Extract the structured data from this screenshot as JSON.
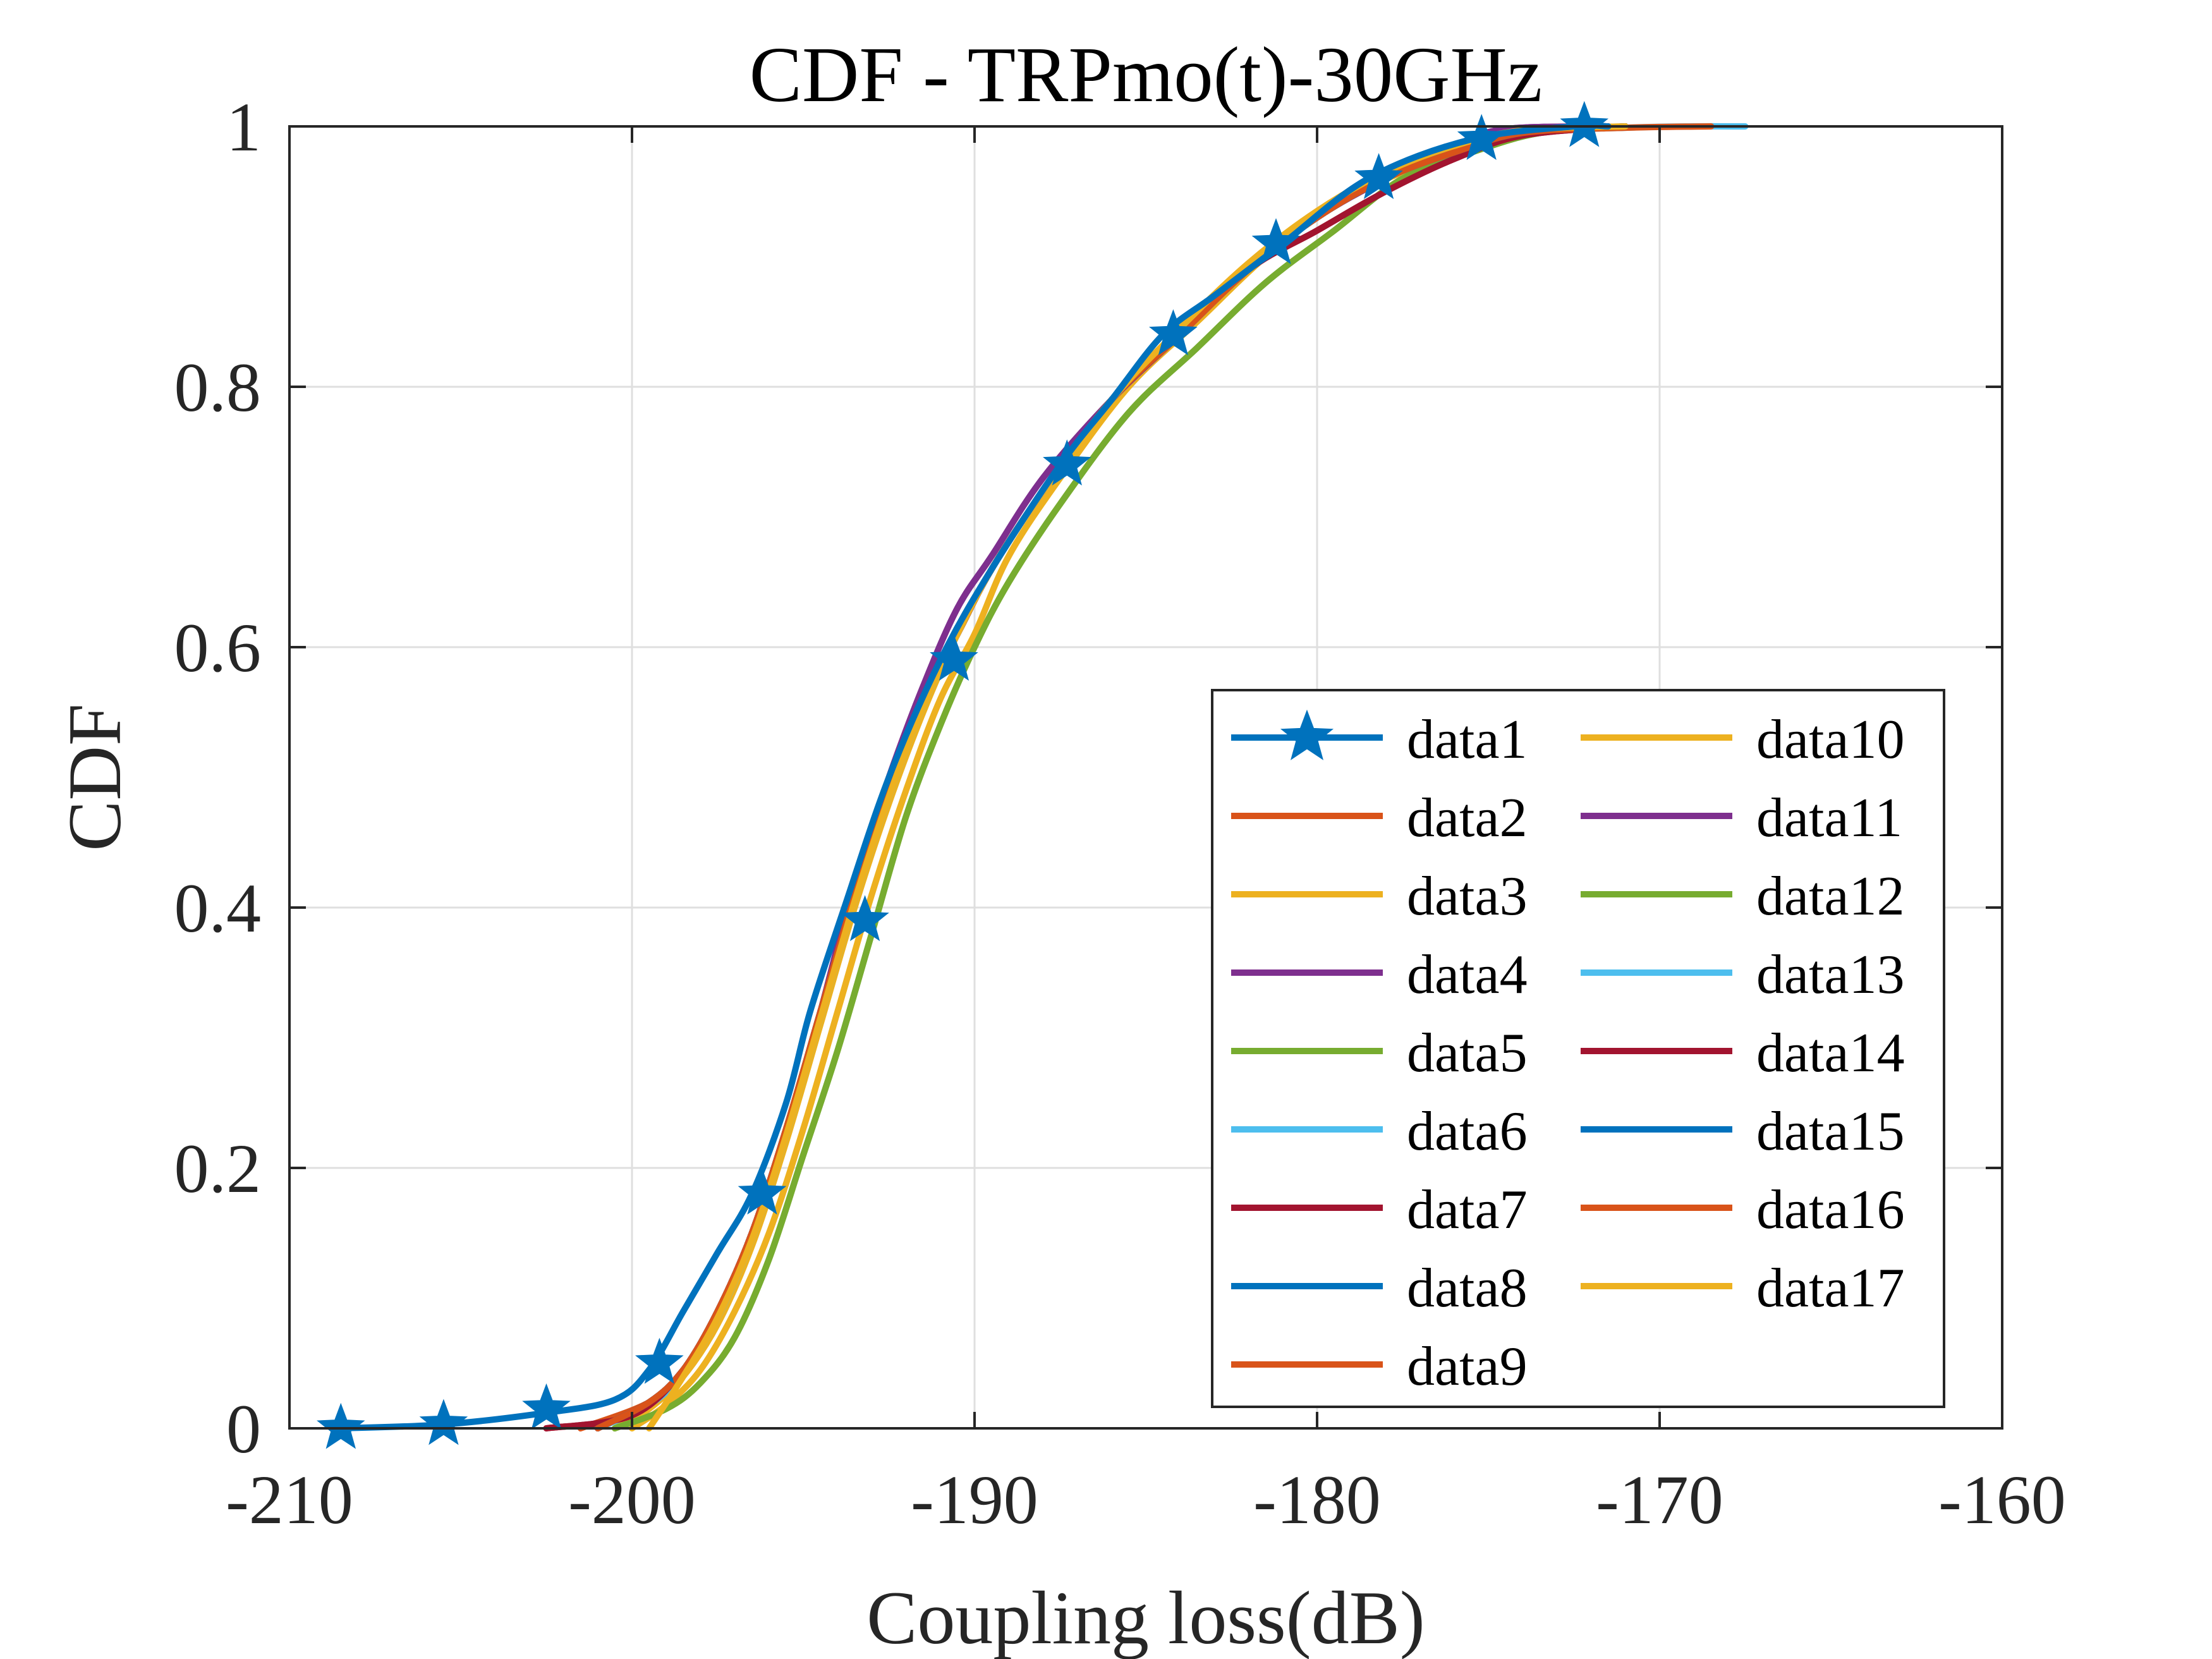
{
  "chart_data": {
    "type": "line",
    "title": "CDF - TRPmo(t)-30GHz",
    "xlabel": "Coupling loss(dB)",
    "ylabel": "CDF",
    "xlim": [
      -210,
      -160
    ],
    "ylim": [
      0,
      1
    ],
    "xticks": [
      "-210",
      "-200",
      "-190",
      "-180",
      "-170",
      "-160"
    ],
    "yticks": [
      "0",
      "0.2",
      "0.4",
      "0.6",
      "0.8",
      "1"
    ],
    "grid": true,
    "legend_position": "bottom-right",
    "legend_columns": 2,
    "series": [
      {
        "name": "data1",
        "color": "#0072BD",
        "marker": "star",
        "x": [
          -208.5,
          -205.5,
          -202.5,
          -200.5,
          -199.5,
          -198.5,
          -197.5,
          -196.5,
          -195.5,
          -194.8,
          -193.8,
          -192.5,
          -191,
          -189.5,
          -187.5,
          -186,
          -184.5,
          -183,
          -181,
          -178.5,
          -175.5,
          -172.5,
          -171.5
        ],
        "y": [
          0,
          0.003,
          0.012,
          0.022,
          0.045,
          0.09,
          0.135,
          0.18,
          0.25,
          0.32,
          0.4,
          0.5,
          0.59,
          0.66,
          0.74,
          0.79,
          0.84,
          0.87,
          0.91,
          0.96,
          0.99,
          1.0,
          1.0
        ],
        "markers_x": [
          -208.5,
          -205.5,
          -202.5,
          -199.2,
          -196.2,
          -193.2,
          -190.6,
          -187.3,
          -184.2,
          -181.2,
          -178.2,
          -175.2,
          -172.2
        ],
        "markers_y": [
          0,
          0.003,
          0.015,
          0.05,
          0.18,
          0.39,
          0.59,
          0.74,
          0.84,
          0.91,
          0.96,
          0.99,
          1.0
        ]
      },
      {
        "name": "data2",
        "color": "#D95319",
        "x": [
          -201.5,
          -199.5,
          -198.5,
          -197.5,
          -196.5,
          -195.5,
          -194.5,
          -193.5,
          -192.5,
          -191.5,
          -190.5,
          -189.5,
          -188,
          -186,
          -184,
          -182,
          -180,
          -178,
          -176,
          -174,
          -171
        ],
        "y": [
          0,
          0.02,
          0.045,
          0.09,
          0.15,
          0.23,
          0.32,
          0.41,
          0.49,
          0.56,
          0.61,
          0.66,
          0.72,
          0.79,
          0.84,
          0.89,
          0.93,
          0.96,
          0.98,
          0.995,
          1.0
        ]
      },
      {
        "name": "data3",
        "color": "#EDB120",
        "x": [
          -200.5,
          -199.5,
          -198.5,
          -197.5,
          -196.5,
          -195.5,
          -194.5,
          -193.5,
          -192.5,
          -191.5,
          -190.5,
          -189.5,
          -188,
          -186,
          -184,
          -182,
          -180,
          -178,
          -176,
          -174,
          -171
        ],
        "y": [
          0,
          0.015,
          0.04,
          0.08,
          0.14,
          0.22,
          0.31,
          0.4,
          0.48,
          0.55,
          0.61,
          0.66,
          0.72,
          0.79,
          0.84,
          0.89,
          0.93,
          0.96,
          0.98,
          0.995,
          1.0
        ]
      },
      {
        "name": "data4",
        "color": "#7E2F8E",
        "x": [
          -201,
          -199.5,
          -198.5,
          -197.5,
          -196.5,
          -195.5,
          -194.5,
          -193.5,
          -192.5,
          -191.5,
          -190.5,
          -189.5,
          -188,
          -186,
          -184,
          -182,
          -180,
          -178,
          -176,
          -174.5,
          -171.5
        ],
        "y": [
          0,
          0.02,
          0.045,
          0.09,
          0.15,
          0.23,
          0.32,
          0.42,
          0.5,
          0.57,
          0.63,
          0.67,
          0.73,
          0.79,
          0.84,
          0.89,
          0.93,
          0.96,
          0.985,
          0.998,
          1.0
        ]
      },
      {
        "name": "data5",
        "color": "#77AC30",
        "x": [
          -200.5,
          -199,
          -198,
          -197,
          -196,
          -195,
          -194,
          -193,
          -192,
          -191,
          -190,
          -189,
          -187.5,
          -185.5,
          -183.5,
          -181.5,
          -179.5,
          -177.5,
          -175.5,
          -173.5,
          -171
        ],
        "y": [
          0,
          0.015,
          0.035,
          0.07,
          0.13,
          0.21,
          0.29,
          0.38,
          0.47,
          0.54,
          0.6,
          0.65,
          0.71,
          0.78,
          0.83,
          0.88,
          0.92,
          0.96,
          0.98,
          0.995,
          1.0
        ]
      },
      {
        "name": "data6",
        "color": "#4DBEEE",
        "x": [
          -201,
          -199.5,
          -198.5,
          -197.5,
          -196.5,
          -195.5,
          -194.5,
          -193.5,
          -192.5,
          -191.5,
          -190.5,
          -189.5,
          -188,
          -186,
          -184,
          -182,
          -180,
          -178,
          -176,
          -174,
          -171
        ],
        "y": [
          0,
          0.018,
          0.042,
          0.085,
          0.145,
          0.225,
          0.315,
          0.405,
          0.485,
          0.555,
          0.61,
          0.66,
          0.72,
          0.79,
          0.84,
          0.89,
          0.93,
          0.96,
          0.98,
          0.995,
          1.0
        ]
      },
      {
        "name": "data7",
        "color": "#A2142F",
        "x": [
          -202.5,
          -200,
          -198.5,
          -197.5,
          -196.5,
          -195.5,
          -194.5,
          -193.5,
          -192.5,
          -191.5,
          -190.5,
          -189.5,
          -188,
          -186,
          -184,
          -182,
          -180,
          -178,
          -176,
          -174,
          -171
        ],
        "y": [
          0,
          0.01,
          0.045,
          0.09,
          0.15,
          0.23,
          0.32,
          0.41,
          0.49,
          0.56,
          0.61,
          0.66,
          0.72,
          0.79,
          0.84,
          0.89,
          0.92,
          0.95,
          0.975,
          0.993,
          1.0
        ]
      },
      {
        "name": "data8",
        "color": "#0072BD",
        "x": [
          -201,
          -199.5,
          -198.5,
          -197.5,
          -196.5,
          -195.5,
          -194.5,
          -193.5,
          -192.5,
          -191.5,
          -190.5,
          -189.5,
          -188,
          -186,
          -184,
          -182,
          -180,
          -178,
          -176,
          -174,
          -171
        ],
        "y": [
          0,
          0.02,
          0.045,
          0.09,
          0.15,
          0.23,
          0.32,
          0.41,
          0.49,
          0.56,
          0.61,
          0.66,
          0.72,
          0.79,
          0.84,
          0.89,
          0.93,
          0.96,
          0.98,
          0.995,
          1.0
        ]
      },
      {
        "name": "data9",
        "color": "#D95319",
        "x": [
          -201,
          -199.5,
          -198.5,
          -197.5,
          -196.5,
          -195.5,
          -194.5,
          -193.5,
          -192.5,
          -191.5,
          -190.5,
          -189.5,
          -188,
          -186,
          -184,
          -182,
          -180,
          -178,
          -176,
          -174,
          -171
        ],
        "y": [
          0,
          0.02,
          0.045,
          0.09,
          0.15,
          0.23,
          0.32,
          0.41,
          0.49,
          0.56,
          0.61,
          0.66,
          0.72,
          0.79,
          0.84,
          0.89,
          0.93,
          0.96,
          0.98,
          0.995,
          1.0
        ]
      },
      {
        "name": "data10",
        "color": "#EDB120",
        "x": [
          -200,
          -199,
          -198,
          -197,
          -196,
          -195,
          -194,
          -193,
          -192,
          -191,
          -190,
          -189,
          -187.5,
          -185.5,
          -183.5,
          -181.5,
          -179.5,
          -177.5,
          -175.5,
          -173.5,
          -171
        ],
        "y": [
          0,
          0.018,
          0.045,
          0.09,
          0.15,
          0.23,
          0.32,
          0.41,
          0.49,
          0.56,
          0.61,
          0.67,
          0.73,
          0.8,
          0.85,
          0.9,
          0.94,
          0.965,
          0.985,
          0.997,
          1.0
        ]
      },
      {
        "name": "data11",
        "color": "#7E2F8E",
        "x": [
          -201,
          -199.5,
          -198.5,
          -197.5,
          -196.5,
          -195.5,
          -194.5,
          -193.5,
          -192.5,
          -191.5,
          -190.5,
          -189.5,
          -188,
          -186,
          -184,
          -182,
          -180,
          -178,
          -176,
          -174.5,
          -171.5
        ],
        "y": [
          0,
          0.02,
          0.045,
          0.09,
          0.15,
          0.23,
          0.32,
          0.42,
          0.5,
          0.57,
          0.63,
          0.67,
          0.73,
          0.79,
          0.84,
          0.89,
          0.93,
          0.96,
          0.985,
          0.998,
          1.0
        ]
      },
      {
        "name": "data12",
        "color": "#77AC30",
        "x": [
          -200.5,
          -199,
          -198,
          -197,
          -196,
          -195,
          -194,
          -193,
          -192,
          -191,
          -190,
          -189,
          -187.5,
          -185.5,
          -183.5,
          -181.5,
          -179.5,
          -177.5,
          -175.5,
          -173.5,
          -171
        ],
        "y": [
          0,
          0.015,
          0.035,
          0.07,
          0.13,
          0.21,
          0.29,
          0.38,
          0.47,
          0.54,
          0.6,
          0.65,
          0.71,
          0.78,
          0.83,
          0.88,
          0.92,
          0.96,
          0.98,
          0.995,
          1.0
        ]
      },
      {
        "name": "data13",
        "color": "#4DBEEE",
        "x": [
          -201,
          -199.5,
          -198.5,
          -197.5,
          -196.5,
          -195.5,
          -194.5,
          -193.5,
          -192.5,
          -191.5,
          -190.5,
          -189.5,
          -188,
          -186,
          -184,
          -182,
          -180,
          -178,
          -176,
          -174,
          -171,
          -169,
          -167.5
        ],
        "y": [
          0,
          0.018,
          0.042,
          0.085,
          0.145,
          0.225,
          0.315,
          0.405,
          0.485,
          0.555,
          0.61,
          0.66,
          0.72,
          0.79,
          0.84,
          0.89,
          0.93,
          0.96,
          0.98,
          0.995,
          0.999,
          1.0,
          1.0
        ]
      },
      {
        "name": "data14",
        "color": "#A2142F",
        "x": [
          -202.5,
          -200,
          -198.5,
          -197.5,
          -196.5,
          -195.5,
          -194.5,
          -193.5,
          -192.5,
          -191.5,
          -190.5,
          -189.5,
          -188,
          -186,
          -184,
          -182,
          -180,
          -178,
          -176,
          -174,
          -171
        ],
        "y": [
          0,
          0.01,
          0.045,
          0.09,
          0.15,
          0.23,
          0.32,
          0.41,
          0.49,
          0.56,
          0.61,
          0.66,
          0.72,
          0.79,
          0.84,
          0.89,
          0.92,
          0.95,
          0.975,
          0.993,
          1.0
        ]
      },
      {
        "name": "data15",
        "color": "#0072BD",
        "x": [
          -201,
          -199.5,
          -198.5,
          -197.5,
          -196.5,
          -195.5,
          -194.5,
          -193.5,
          -192.5,
          -191.5,
          -190.5,
          -189.5,
          -188,
          -186,
          -184,
          -182,
          -180,
          -178,
          -176,
          -174,
          -171
        ],
        "y": [
          0,
          0.02,
          0.045,
          0.09,
          0.15,
          0.23,
          0.32,
          0.41,
          0.49,
          0.56,
          0.61,
          0.66,
          0.72,
          0.79,
          0.84,
          0.89,
          0.93,
          0.96,
          0.98,
          0.995,
          1.0
        ]
      },
      {
        "name": "data16",
        "color": "#D95319",
        "x": [
          -201,
          -199.5,
          -198.5,
          -197.5,
          -196.5,
          -195.5,
          -194.5,
          -193.5,
          -192.5,
          -191.5,
          -190.5,
          -189.5,
          -188,
          -186,
          -184,
          -182,
          -180,
          -178,
          -176,
          -174,
          -171,
          -168.5
        ],
        "y": [
          0,
          0.02,
          0.045,
          0.09,
          0.15,
          0.23,
          0.32,
          0.41,
          0.49,
          0.56,
          0.61,
          0.66,
          0.72,
          0.79,
          0.84,
          0.89,
          0.93,
          0.96,
          0.98,
          0.995,
          0.999,
          1.0
        ]
      },
      {
        "name": "data17",
        "color": "#EDB120",
        "x": [
          -199.5,
          -198.5,
          -197.5,
          -196.5,
          -195.5,
          -194.5,
          -193.5,
          -192.5,
          -191.5,
          -190.5,
          -189.5,
          -188,
          -186,
          -184,
          -182,
          -180,
          -178,
          -176,
          -174,
          -171
        ],
        "y": [
          0,
          0.04,
          0.085,
          0.145,
          0.225,
          0.315,
          0.405,
          0.485,
          0.555,
          0.61,
          0.66,
          0.72,
          0.79,
          0.845,
          0.895,
          0.935,
          0.965,
          0.985,
          0.997,
          1.0
        ]
      }
    ]
  }
}
